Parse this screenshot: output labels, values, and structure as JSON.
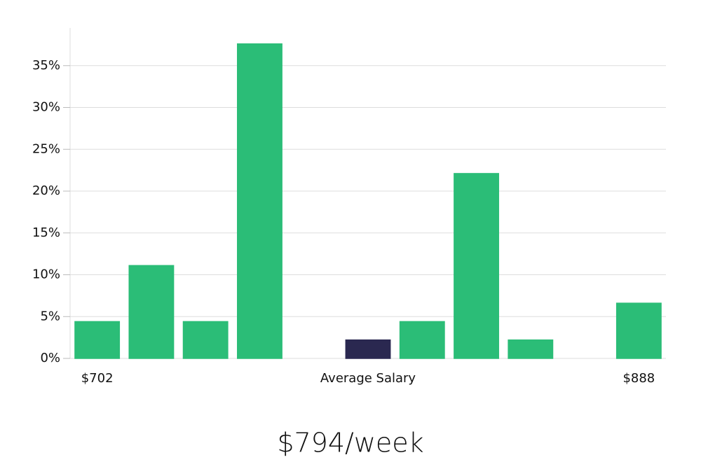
{
  "chart_data": {
    "type": "bar",
    "title": "$794/week",
    "categories": [
      "$702",
      null,
      null,
      null,
      null,
      "Average Salary",
      null,
      null,
      null,
      null,
      "$888"
    ],
    "values": [
      4.4,
      11.1,
      4.4,
      37.6,
      0,
      2.2,
      4.4,
      22.1,
      2.2,
      0,
      6.6
    ],
    "colors": [
      "#2bbd77",
      "#2bbd77",
      "#2bbd77",
      "#2bbd77",
      "#2bbd77",
      "#2a2850",
      "#2bbd77",
      "#2bbd77",
      "#2bbd77",
      "#2bbd77",
      "#2bbd77"
    ],
    "ylim": [
      0,
      39.5
    ],
    "yticks": [
      {
        "value": 0,
        "label": "0%"
      },
      {
        "value": 5,
        "label": "5%"
      },
      {
        "value": 10,
        "label": "10%"
      },
      {
        "value": 15,
        "label": "15%"
      },
      {
        "value": 20,
        "label": "20%"
      },
      {
        "value": 25,
        "label": "25%"
      },
      {
        "value": 30,
        "label": "30%"
      },
      {
        "value": 35,
        "label": "35%"
      }
    ],
    "grid": true
  }
}
